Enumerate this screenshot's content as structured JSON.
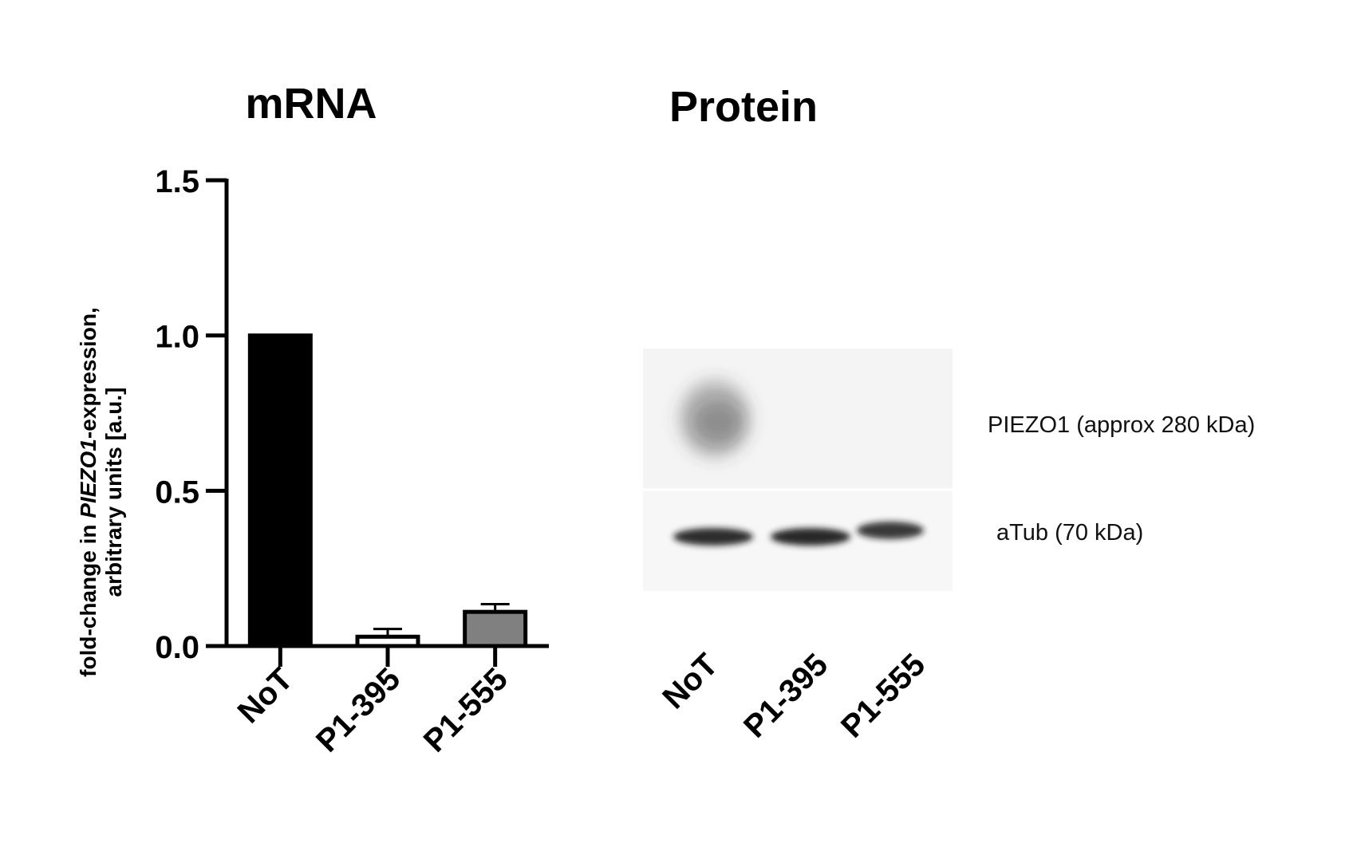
{
  "panels": {
    "mrna_title": "mRNA",
    "protein_title": "Protein"
  },
  "chart_data": {
    "type": "bar",
    "title": "mRNA",
    "categories": [
      "NoT",
      "P1-395",
      "P1-555"
    ],
    "values": [
      1.0,
      0.03,
      0.11
    ],
    "error": [
      0.0,
      0.025,
      0.025
    ],
    "bar_colors": [
      "#000000",
      "#ffffff",
      "#808080"
    ],
    "ylabel_line1_prefix": "fold-change in ",
    "ylabel_line1_italic": "PIEZO1",
    "ylabel_line1_suffix": "-expression,",
    "ylabel_line2": "arbitrary units [a.u.]",
    "ylim": [
      0,
      1.5
    ],
    "yticks": [
      0.0,
      0.5,
      1.0,
      1.5
    ],
    "ytick_labels": [
      "0.0",
      "0.5",
      "1.0",
      "1.5"
    ],
    "grid": false
  },
  "western_blot": {
    "lanes": [
      "NoT",
      "P1-395",
      "P1-555"
    ],
    "bands": [
      {
        "name": "PIEZO1 (approx 280 kDa)",
        "intensity": [
          0.55,
          0.0,
          0.0
        ]
      },
      {
        "name": "aTub (70 kDa)",
        "intensity": [
          0.9,
          0.95,
          0.85
        ]
      }
    ]
  },
  "colors": {
    "axis": "#000000",
    "membrane_background": "#f6f6f6"
  }
}
